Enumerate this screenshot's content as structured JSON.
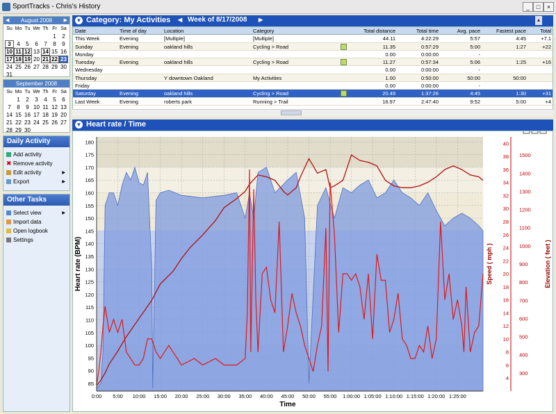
{
  "window": {
    "title": "SportTracks - Chris's History",
    "min": "_",
    "max": "□",
    "close": "×"
  },
  "calendar": [
    {
      "month": "August 2008",
      "dow": [
        "Su",
        "Mo",
        "Tu",
        "We",
        "Th",
        "Fr",
        "Sa"
      ],
      "days": [
        "",
        "",
        "",
        "",
        "",
        "1",
        "2",
        "3",
        "4",
        "5",
        "6",
        "7",
        "8",
        "9",
        "10",
        "11",
        "12",
        "13",
        "14",
        "15",
        "16",
        "17",
        "18",
        "19",
        "20",
        "21",
        "22",
        "23",
        "24",
        "25",
        "26",
        "27",
        "28",
        "29",
        "30",
        "31"
      ],
      "bold": [
        "3",
        "10",
        "11",
        "12",
        "14",
        "17",
        "18",
        "19",
        "21",
        "22"
      ],
      "selected": [
        "23"
      ]
    },
    {
      "month": "September 2008",
      "days": [
        "",
        "1",
        "2",
        "3",
        "4",
        "5",
        "6",
        "7",
        "8",
        "9",
        "10",
        "11",
        "12",
        "13",
        "14",
        "15",
        "16",
        "17",
        "18",
        "19",
        "20",
        "21",
        "22",
        "23",
        "24",
        "25",
        "26",
        "27",
        "28",
        "29",
        "30"
      ]
    }
  ],
  "daily_activity": {
    "title": "Daily Activity",
    "items": [
      "Add activity",
      "Remove activity",
      "Edit activity",
      "Export"
    ]
  },
  "other_tasks": {
    "title": "Other Tasks",
    "items": [
      "Select view",
      "Import data",
      "Open logbook",
      "Settings"
    ]
  },
  "top_header": {
    "category": "Category: My Activities",
    "week": "Week of 8/17/2008"
  },
  "table": {
    "columns": [
      "Date",
      "Time of day",
      "Location",
      "Category",
      "",
      "Total distance",
      "Total time",
      "Avg. pace",
      "Fastest pace",
      "Total"
    ],
    "rows": [
      [
        "This Week",
        "Evening",
        "[Multiple]",
        "[Multiple]",
        "",
        "44.11",
        "4:22:29",
        "5:57",
        "4:45",
        "+7.1"
      ],
      [
        "Sunday",
        "Evening",
        "oakland hills",
        "Cycling > Road",
        "c",
        "11.35",
        "0:57:29",
        "5:00",
        "1:27",
        "+22"
      ],
      [
        "Monday",
        "",
        "",
        "",
        "",
        "0.00",
        "0:00:00",
        "-",
        "",
        ""
      ],
      [
        "Tuesday",
        "Evening",
        "oakland hills",
        "Cycling > Road",
        "c",
        "11.27",
        "0:57:34",
        "5:06",
        "1:25",
        "+16"
      ],
      [
        "Wednesday",
        "",
        "",
        "",
        "",
        "0.00",
        "0:00:00",
        "-",
        "",
        ""
      ],
      [
        "Thursday",
        "",
        "Y downtown Oakland",
        "My Activities",
        "",
        "1.00",
        "0:50:00",
        "50:00",
        "50:00",
        ""
      ],
      [
        "Friday",
        "",
        "",
        "",
        "",
        "0.00",
        "0:00:00",
        "-",
        "",
        ""
      ],
      [
        "Saturday",
        "Evening",
        "oakland hills",
        "Cycling > Road",
        "c",
        "20.49",
        "1:37:26",
        "4:45",
        "1:30",
        "+31"
      ],
      [
        "Last Week",
        "Evening",
        "roberts park",
        "Running > Trail",
        "",
        "16.97",
        "2:47:40",
        "9:52",
        "5:00",
        "+4"
      ]
    ],
    "selected_row": 7
  },
  "chart_panel": {
    "title": "Heart rate / Time"
  },
  "chart_data": {
    "type": "line",
    "xlabel": "Time",
    "ylabel_left": "Heart rate (BPM)",
    "ylabel_right1": "Speed ( mph )",
    "ylabel_right2": "Elevation ( feet )",
    "x_ticks": [
      "0:00",
      "5:00",
      "10:00",
      "15:00",
      "20:00",
      "25:00",
      "30:00",
      "35:00",
      "40:00",
      "45:00",
      "50:00",
      "55:00",
      "1:00:00",
      "1:05:00",
      "1:10:00",
      "1:15:00",
      "1:20:00",
      "1:25:00"
    ],
    "hr_ticks": [
      85,
      90,
      95,
      100,
      105,
      110,
      115,
      120,
      125,
      130,
      135,
      140,
      145,
      150,
      155,
      160,
      165,
      170,
      175,
      180
    ],
    "speed_ticks": [
      4,
      6,
      8,
      10,
      12,
      14,
      16,
      18,
      20,
      22,
      24,
      26,
      28,
      30,
      32,
      34,
      36,
      38,
      40
    ],
    "elev_ticks": [
      300,
      400,
      500,
      600,
      700,
      800,
      900,
      1000,
      1100,
      1200,
      1300,
      1400,
      1500
    ],
    "hr_range": [
      82,
      182
    ],
    "speed_range": [
      2,
      41
    ],
    "elev_range": [
      200,
      1600
    ],
    "x_range_min": [
      0,
      91
    ],
    "series": [
      {
        "name": "Heart rate",
        "color": "#7f9be0",
        "x": [
          0,
          1,
          1.5,
          2,
          3,
          4,
          5,
          6,
          7,
          8,
          9,
          10,
          11,
          12,
          13,
          13.2,
          14,
          15,
          17,
          20,
          25,
          30,
          33,
          35,
          36,
          37,
          38,
          40,
          42,
          45,
          47,
          49,
          50,
          52,
          54,
          56,
          58,
          60,
          62,
          64,
          66,
          68,
          70,
          72,
          74,
          76,
          78,
          80,
          82,
          84,
          86,
          88,
          90,
          91
        ],
        "y": [
          83,
          85,
          98,
          155,
          160,
          160,
          155,
          163,
          168,
          165,
          170,
          164,
          163,
          168,
          130,
          83,
          157,
          160,
          161,
          159,
          158,
          159,
          160,
          150,
          160,
          150,
          168,
          170,
          160,
          165,
          168,
          150,
          85,
          155,
          162,
          150,
          162,
          160,
          163,
          165,
          158,
          160,
          165,
          160,
          158,
          155,
          160,
          153,
          147,
          150,
          152,
          150,
          147,
          145
        ]
      },
      {
        "name": "Elevation",
        "color": "#b01010",
        "x": [
          0,
          1,
          2,
          3,
          5,
          7,
          10,
          13,
          15,
          18,
          20,
          22,
          25,
          28,
          30,
          33,
          35,
          36,
          38,
          40,
          42,
          44,
          45,
          47,
          48,
          50,
          52,
          54,
          55,
          56,
          58,
          60,
          62,
          64,
          66,
          68,
          70,
          72,
          74,
          76,
          78,
          80,
          82,
          84,
          86,
          88,
          90,
          91
        ],
        "y": [
          230,
          260,
          300,
          350,
          420,
          500,
          600,
          700,
          790,
          860,
          930,
          990,
          1060,
          1140,
          1210,
          1260,
          1300,
          1340,
          1390,
          1380,
          1360,
          1300,
          1280,
          1320,
          1380,
          1480,
          1400,
          1420,
          1320,
          1330,
          1360,
          1500,
          1470,
          1460,
          1440,
          1360,
          1330,
          1320,
          1320,
          1330,
          1350,
          1380,
          1420,
          1440,
          1420,
          1390,
          1380,
          1360
        ]
      },
      {
        "name": "Speed",
        "color": "#e01818",
        "x": [
          0,
          0.5,
          1,
          1.5,
          2,
          3,
          4,
          5,
          6,
          7,
          8,
          9,
          10,
          11,
          12,
          13,
          14,
          15,
          17,
          20,
          23,
          25,
          28,
          30,
          33,
          35,
          35.5,
          36,
          36.3,
          37,
          37.5,
          38,
          39,
          40,
          41,
          42,
          43,
          44,
          45,
          46,
          47,
          48,
          49,
          50,
          51,
          52,
          53,
          54,
          54.5,
          55,
          56,
          57,
          58,
          59,
          60,
          61,
          62,
          63,
          64,
          65,
          66,
          67,
          68,
          69,
          70,
          71,
          72,
          73,
          74,
          75,
          76,
          77,
          78,
          79,
          80,
          81,
          82,
          83,
          84,
          85,
          86,
          86.5,
          87,
          88,
          89,
          90,
          91
        ],
        "y": [
          3,
          5,
          8,
          12,
          15,
          11,
          13,
          11,
          13,
          8,
          7,
          6,
          6,
          7,
          10,
          10,
          8,
          7,
          9,
          6,
          7,
          6,
          7,
          6,
          6,
          7,
          14,
          36,
          8,
          33,
          16,
          8,
          20,
          21,
          16,
          14,
          28,
          8,
          12,
          17,
          14,
          12,
          9,
          7,
          5,
          9,
          12,
          27,
          5,
          34,
          26,
          11,
          20,
          20,
          19,
          20,
          18,
          13,
          20,
          10,
          23,
          19,
          19,
          11,
          13,
          17,
          10,
          9,
          7,
          7,
          9,
          8,
          12,
          7,
          10,
          28,
          16,
          20,
          13,
          16,
          12,
          8,
          18,
          8,
          11,
          12,
          20
        ]
      }
    ]
  }
}
